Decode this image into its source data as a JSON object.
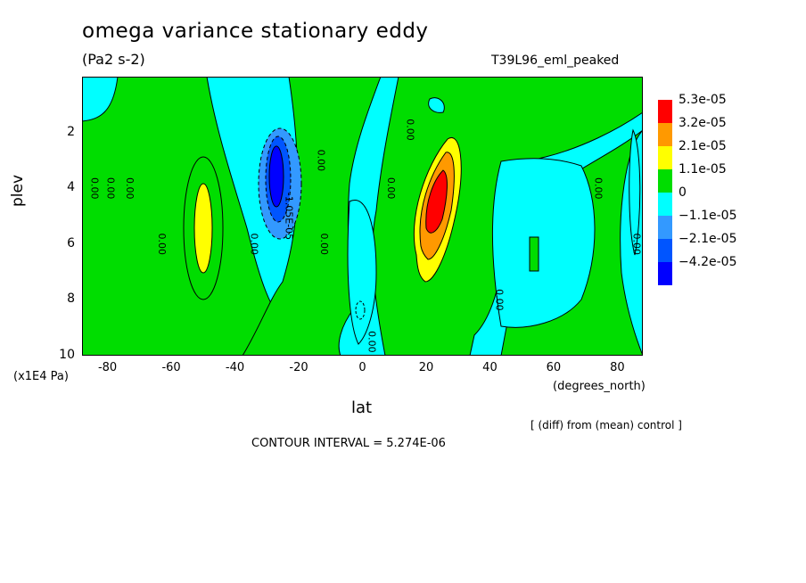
{
  "header": {
    "title": "omega variance stationary eddy",
    "units": "(Pa2 s-2)",
    "experiment": "T39L96_eml_peaked"
  },
  "footer": {
    "diff_note": "[ (diff) from (mean) control ]",
    "contour_interval": "CONTOUR INTERVAL = 5.274E-06"
  },
  "chart_data": {
    "type": "heatmap",
    "xlabel": "lat",
    "x_unit_label": "(degrees_north)",
    "ylabel": "plev",
    "y_unit_label": "(x1E4 Pa)",
    "xlim": [
      -88,
      88
    ],
    "ylim": [
      10,
      0
    ],
    "x_ticks": [
      "-80",
      "-60",
      "-40",
      "-20",
      "0",
      "20",
      "40",
      "60",
      "80"
    ],
    "y_ticks": [
      "2",
      "4",
      "6",
      "8",
      "10"
    ],
    "contour_interval": 5.274e-06,
    "legend": {
      "placement": "right",
      "levels": [
        {
          "label": "5.3e-05",
          "color": "#ff0000"
        },
        {
          "label": "3.2e-05",
          "color": "#ff9900"
        },
        {
          "label": "2.1e-05",
          "color": "#ffff00"
        },
        {
          "label": "1.1e-05",
          "color": "#00dd00"
        },
        {
          "label": "0",
          "color": "#00ffff"
        },
        {
          "label": "−1.1e-05",
          "color": "#3399ff"
        },
        {
          "label": "−2.1e-05",
          "color": "#0055ff"
        },
        {
          "label": "−4.2e-05",
          "color": "#0000ff"
        }
      ]
    },
    "features": [
      {
        "kind": "max",
        "lat": 24,
        "plev": 4.5,
        "value": 5.3e-05
      },
      {
        "kind": "max",
        "lat": -50,
        "plev": 5.5,
        "value": 1.6e-05
      },
      {
        "kind": "min",
        "lat": -27,
        "plev": 4.2,
        "value": -4.2e-05
      }
    ],
    "contour_labels": [
      {
        "text": "0.00",
        "lat": -85,
        "plev": 4.0
      },
      {
        "text": "0.00",
        "lat": -80,
        "plev": 4.0
      },
      {
        "text": "0.00",
        "lat": -74,
        "plev": 4.0
      },
      {
        "text": "0.00",
        "lat": -64,
        "plev": 6.0
      },
      {
        "text": "0.00",
        "lat": -35,
        "plev": 6.0
      },
      {
        "text": "-1.05E-05",
        "lat": -24,
        "plev": 5.0
      },
      {
        "text": "0.00",
        "lat": -14,
        "plev": 3.0
      },
      {
        "text": "0.00",
        "lat": -13,
        "plev": 6.0
      },
      {
        "text": "0.00",
        "lat": 14,
        "plev": 1.9
      },
      {
        "text": "0.00",
        "lat": 8,
        "plev": 4.0
      },
      {
        "text": "0.00",
        "lat": 2,
        "plev": 9.5
      },
      {
        "text": "0.00",
        "lat": 42,
        "plev": 8.0
      },
      {
        "text": "0.00",
        "lat": 73,
        "plev": 4.0
      },
      {
        "text": "0.00",
        "lat": 85,
        "plev": 6.0
      }
    ]
  }
}
